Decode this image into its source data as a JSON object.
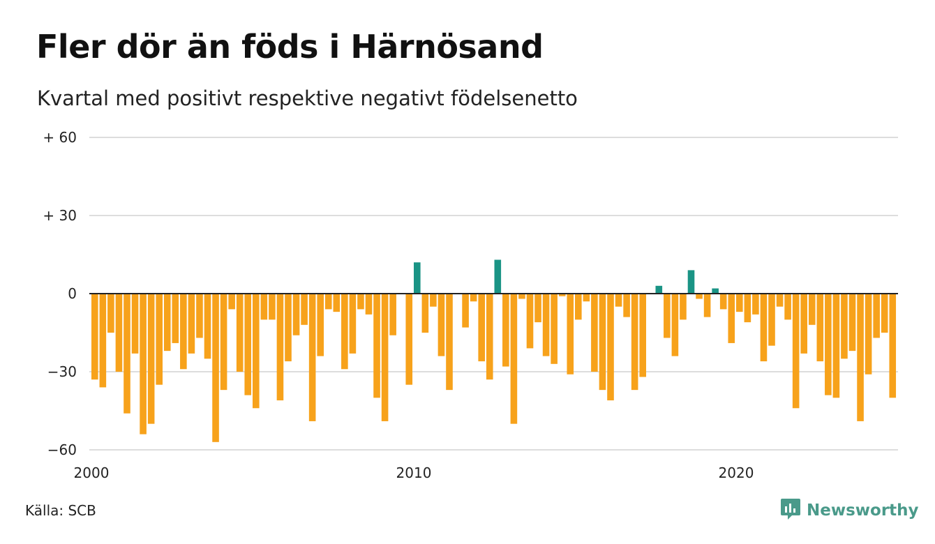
{
  "title": "Fler dör än föds i Härnösand",
  "subtitle": "Kvartal med positivt respektive negativt födelsenetto",
  "source": "Källa: SCB",
  "brand": {
    "name": "Newsworthy",
    "icon": "newsworthy-logo-icon",
    "color": "#4a9a8a"
  },
  "colors": {
    "positive": "#1a9485",
    "negative": "#f7a21b",
    "grid": "#dddddd",
    "zero_line": "#222222"
  },
  "chart_data": {
    "type": "bar",
    "title": "Fler dör än föds i Härnösand",
    "subtitle": "Kvartal med positivt respektive negativt födelsenetto",
    "xlabel": "",
    "ylabel": "",
    "grid": true,
    "ylim": [
      -60,
      60
    ],
    "y_ticks": [
      {
        "value": 60,
        "label": "+ 60"
      },
      {
        "value": 30,
        "label": "+ 30"
      },
      {
        "value": 0,
        "label": "0"
      },
      {
        "value": -30,
        "label": "−30"
      },
      {
        "value": -60,
        "label": "−60"
      }
    ],
    "x_ticks": [
      {
        "year": 2000,
        "label": "2000"
      },
      {
        "year": 2010,
        "label": "2010"
      },
      {
        "year": 2020,
        "label": "2020"
      }
    ],
    "start_year": 2000,
    "periods_per_year": 4,
    "values": [
      -33,
      -36,
      -15,
      -30,
      -46,
      -23,
      -54,
      -50,
      -35,
      -22,
      -19,
      -29,
      -23,
      -17,
      -25,
      -57,
      -37,
      -6,
      -30,
      -39,
      -44,
      -10,
      -10,
      -41,
      -26,
      -16,
      -12,
      -49,
      -24,
      -6,
      -7,
      -29,
      -23,
      -6,
      -8,
      -40,
      -49,
      -16,
      0,
      -35,
      12,
      -15,
      -5,
      -24,
      -37,
      0,
      -13,
      -3,
      -26,
      -33,
      13,
      -28,
      -50,
      -2,
      -21,
      -11,
      -24,
      -27,
      -1,
      -31,
      -10,
      -3,
      -30,
      -37,
      -41,
      -5,
      -9,
      -37,
      -32,
      0,
      3,
      -17,
      -24,
      -10,
      9,
      -2,
      -9,
      2,
      -6,
      -19,
      -7,
      -11,
      -8,
      -26,
      -20,
      -5,
      -10,
      -44,
      -23,
      -12,
      -26,
      -39,
      -40,
      -25,
      -22,
      -49,
      -31,
      -17,
      -15,
      -40
    ]
  }
}
